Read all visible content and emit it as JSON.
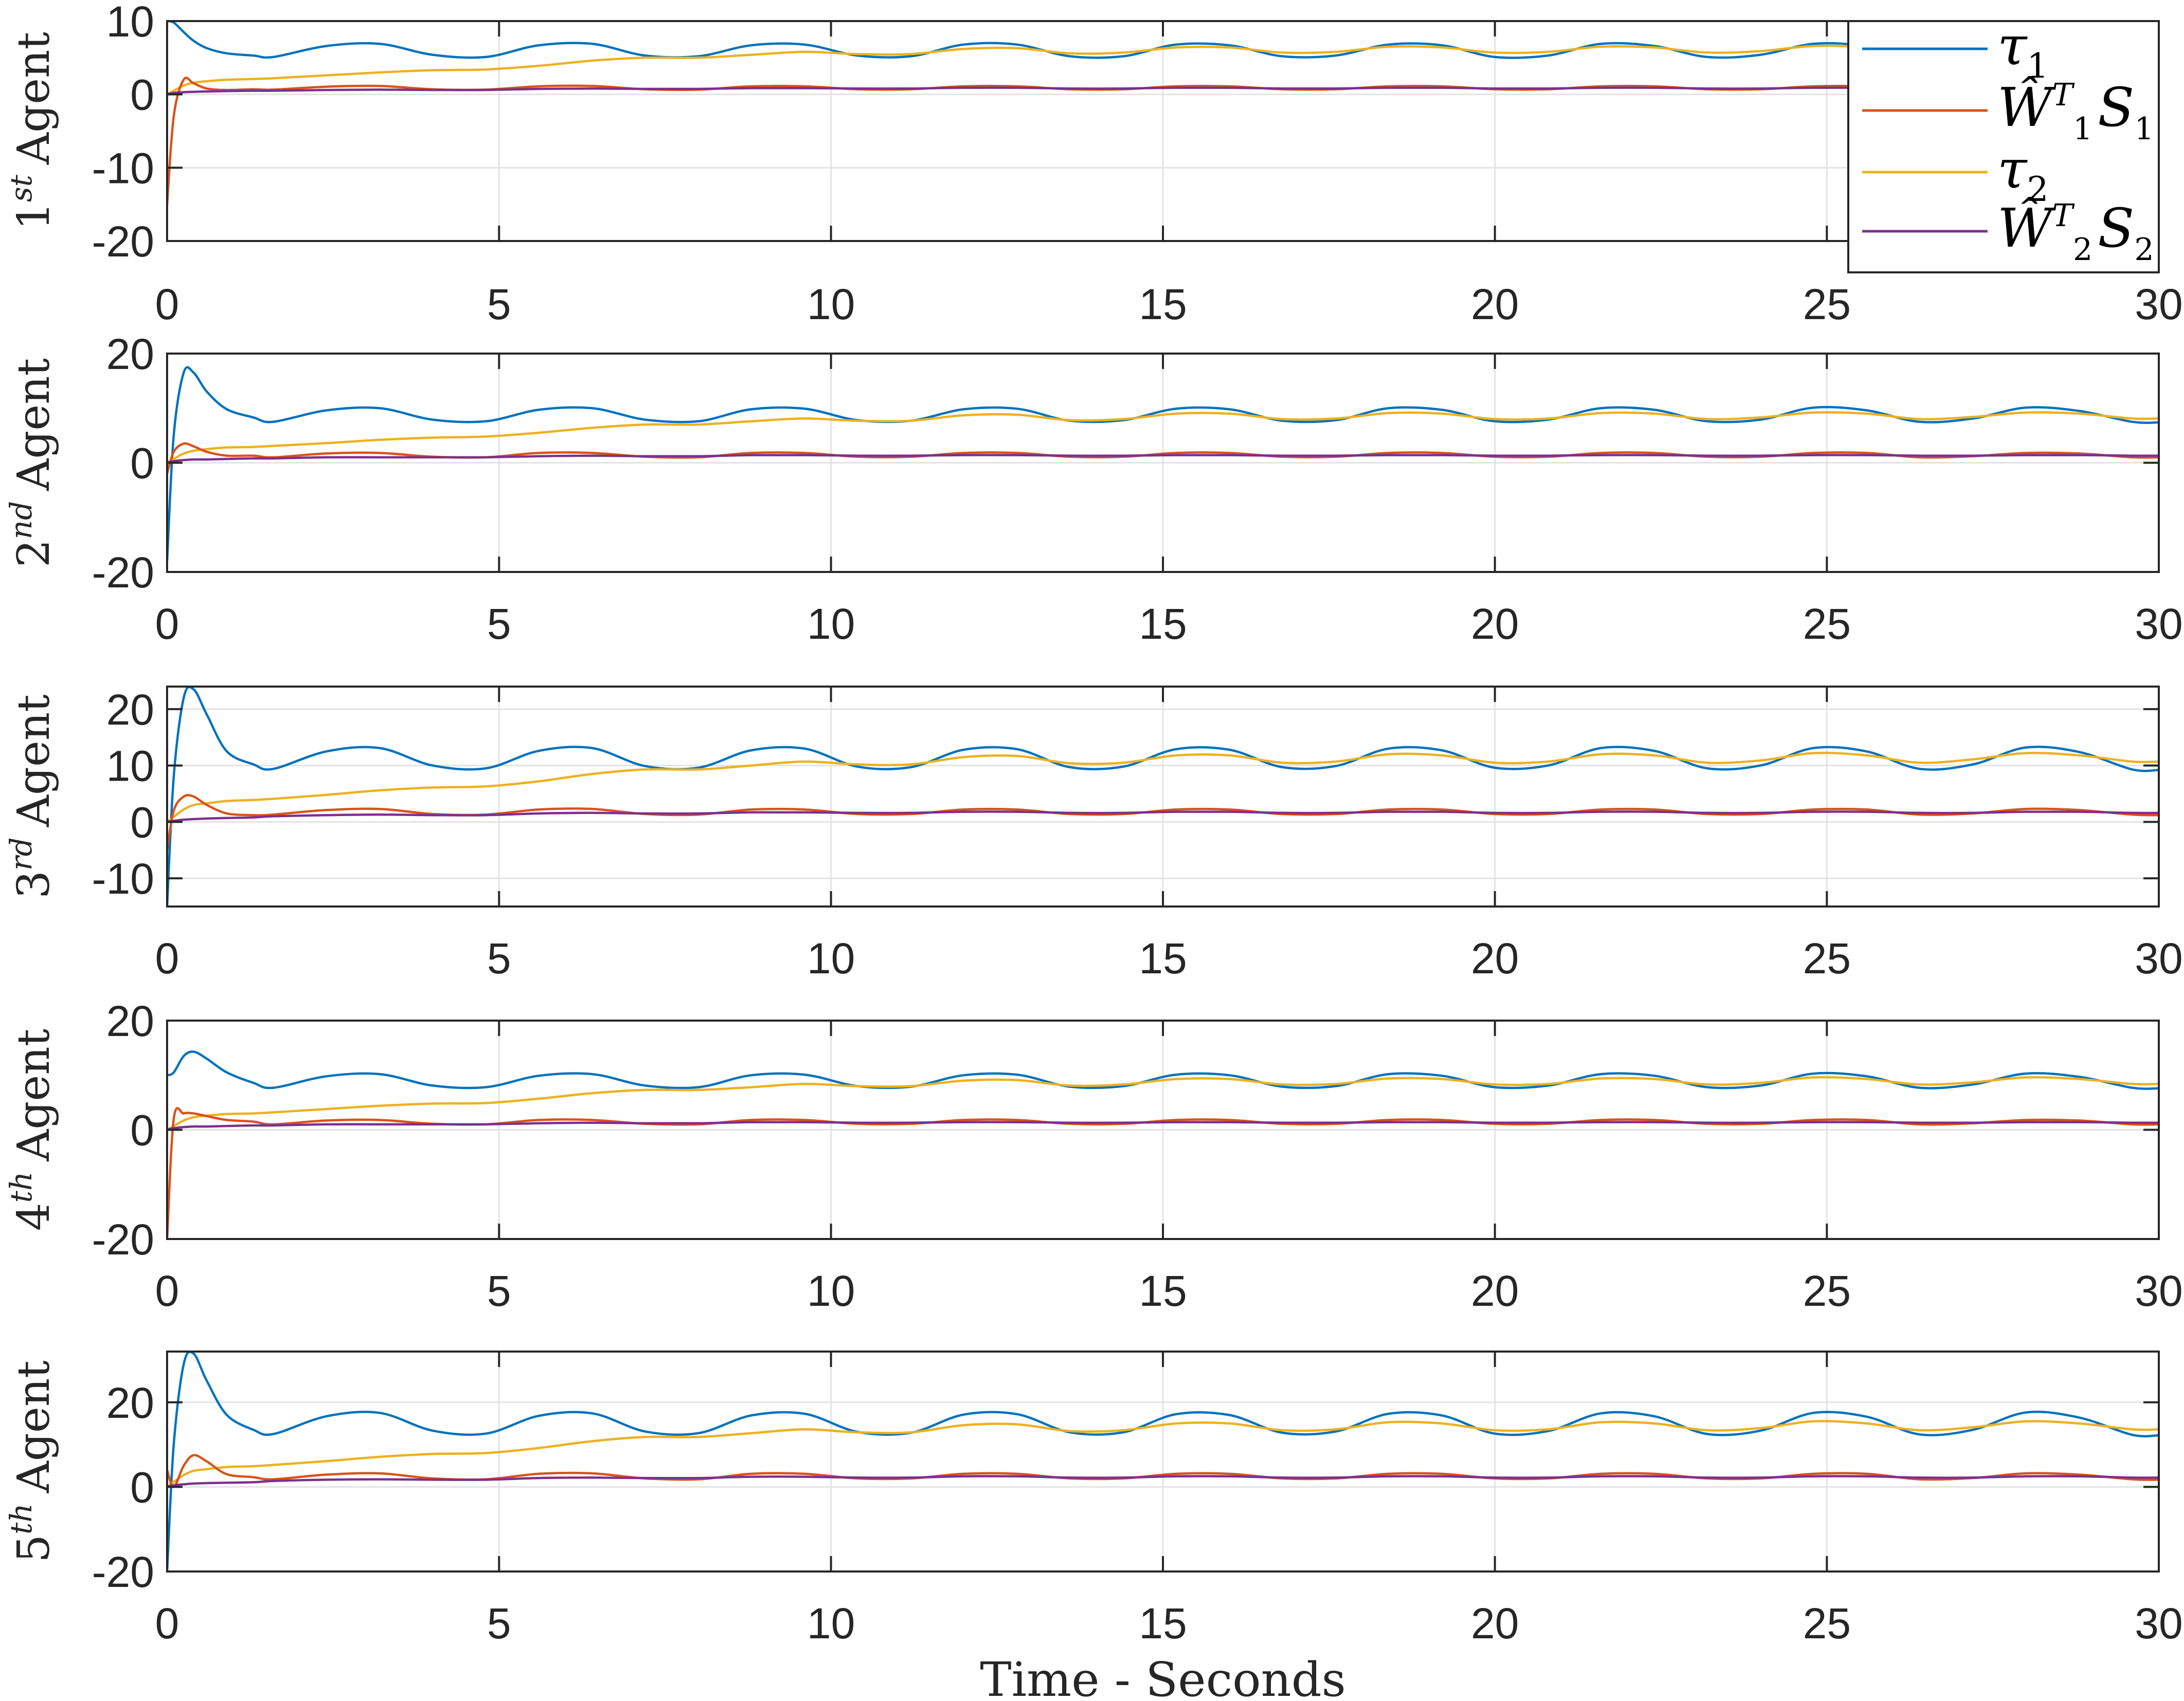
{
  "chart_data": {
    "type": "line",
    "xlabel": "Time - Seconds",
    "xlim": [
      0,
      30
    ],
    "xticks": [
      0,
      5,
      10,
      15,
      20,
      25,
      30
    ],
    "grid": true,
    "legend": {
      "placement": "top-right of first subplot",
      "entries": [
        {
          "series": "tau1",
          "base": "τ",
          "sub": "1"
        },
        {
          "series": "W1S1",
          "base": "Ŵ",
          "sup": "T",
          "sub": "1",
          "tail": "S",
          "tail_sub": "1"
        },
        {
          "series": "tau2",
          "base": "τ",
          "sub": "2"
        },
        {
          "series": "W2S2",
          "base": "Ŵ",
          "sup": "T",
          "sub": "2",
          "tail": "S",
          "tail_sub": "2"
        }
      ]
    },
    "colors": {
      "tau1": "#0072BD",
      "W1S1": "#D95319",
      "tau2": "#EDB120",
      "W2S2": "#7E2F8E"
    },
    "x": [
      0,
      0.1,
      0.25,
      0.4,
      0.6,
      0.9,
      1.3,
      1.6,
      2.4,
      3.2,
      4.0,
      4.8,
      5.6,
      6.4,
      7.2,
      8.0,
      8.8,
      9.6,
      10.4,
      11.2,
      12.0,
      12.8,
      13.6,
      14.4,
      15.2,
      16.0,
      16.8,
      17.6,
      18.4,
      19.2,
      20.0,
      20.8,
      21.6,
      22.4,
      23.2,
      24.0,
      24.8,
      25.6,
      26.4,
      27.2,
      28.0,
      28.8,
      29.6,
      30
    ],
    "subplots": [
      {
        "ordinal": "1",
        "suffix": "st",
        "ylabel": "Agent",
        "ylim": [
          -20,
          10
        ],
        "yticks": [
          -20,
          -10,
          0,
          10
        ],
        "series": {
          "tau1": [
            10,
            9.8,
            8.5,
            7.3,
            6.3,
            5.6,
            5.3,
            5.1,
            6.6,
            6.9,
            5.4,
            5.1,
            6.7,
            6.9,
            5.3,
            5.2,
            6.7,
            6.8,
            5.3,
            5.2,
            6.8,
            6.8,
            5.2,
            5.2,
            6.8,
            6.7,
            5.2,
            5.3,
            6.8,
            6.7,
            5.1,
            5.3,
            6.9,
            6.6,
            5.1,
            5.4,
            6.9,
            6.6,
            5.1,
            5.5,
            7.0,
            6.5,
            5.0,
            4.95
          ],
          "W1S1": [
            -15,
            -3,
            2,
            1.5,
            0.8,
            0.6,
            0.7,
            0.65,
            1.05,
            1.15,
            0.7,
            0.65,
            1.1,
            1.15,
            0.7,
            0.65,
            1.1,
            1.1,
            0.7,
            0.7,
            1.1,
            1.1,
            0.7,
            0.7,
            1.1,
            1.1,
            0.7,
            0.7,
            1.1,
            1.1,
            0.7,
            0.7,
            1.1,
            1.1,
            0.7,
            0.7,
            1.1,
            1.1,
            0.65,
            0.75,
            1.15,
            1.05,
            0.65,
            0.6
          ],
          "tau2": [
            0,
            0.5,
            1.2,
            1.6,
            1.8,
            2.0,
            2.1,
            2.2,
            2.6,
            3.0,
            3.3,
            3.4,
            3.9,
            4.6,
            5.0,
            5.0,
            5.4,
            5.8,
            5.5,
            5.5,
            6.2,
            6.3,
            5.6,
            5.7,
            6.4,
            6.4,
            5.7,
            5.8,
            6.5,
            6.4,
            5.7,
            5.8,
            6.5,
            6.4,
            5.7,
            5.9,
            6.6,
            6.4,
            5.7,
            6.0,
            6.6,
            6.4,
            5.8,
            5.8
          ],
          "W2S2": [
            0,
            0.2,
            0.3,
            0.35,
            0.4,
            0.45,
            0.5,
            0.5,
            0.6,
            0.65,
            0.6,
            0.6,
            0.75,
            0.8,
            0.75,
            0.75,
            0.85,
            0.85,
            0.8,
            0.8,
            0.9,
            0.9,
            0.8,
            0.8,
            0.9,
            0.9,
            0.8,
            0.8,
            0.9,
            0.9,
            0.8,
            0.8,
            0.9,
            0.9,
            0.8,
            0.8,
            0.9,
            0.9,
            0.8,
            0.8,
            0.9,
            0.9,
            0.8,
            0.8
          ]
        }
      },
      {
        "ordinal": "2",
        "suffix": "nd",
        "ylabel": "Agent",
        "ylim": [
          -20,
          20
        ],
        "yticks": [
          -20,
          0,
          20
        ],
        "series": {
          "tau1": [
            -18,
            5,
            16.5,
            16.5,
            13,
            9.8,
            8.3,
            7.5,
            9.6,
            10.0,
            7.9,
            7.6,
            9.7,
            10.0,
            7.9,
            7.6,
            9.8,
            9.9,
            7.8,
            7.7,
            9.8,
            9.9,
            7.7,
            7.8,
            9.9,
            9.8,
            7.7,
            7.8,
            10.0,
            9.7,
            7.6,
            7.9,
            10.0,
            9.7,
            7.6,
            7.9,
            10.1,
            9.6,
            7.5,
            8.1,
            10.1,
            9.5,
            7.5,
            7.4
          ],
          "W1S1": [
            -2,
            2,
            3.5,
            3,
            2,
            1.3,
            1.3,
            1.0,
            1.7,
            1.8,
            1.1,
            1.0,
            1.8,
            1.8,
            1.1,
            1.0,
            1.8,
            1.8,
            1.1,
            1.1,
            1.8,
            1.8,
            1.1,
            1.1,
            1.8,
            1.8,
            1.1,
            1.1,
            1.8,
            1.8,
            1.1,
            1.1,
            1.8,
            1.8,
            1.1,
            1.1,
            1.8,
            1.8,
            1.0,
            1.2,
            1.8,
            1.7,
            1.0,
            1.0
          ],
          "tau2": [
            0,
            0.7,
            1.7,
            2.2,
            2.5,
            2.8,
            2.9,
            3.1,
            3.6,
            4.2,
            4.6,
            4.8,
            5.5,
            6.4,
            7.0,
            7.0,
            7.6,
            8.1,
            7.7,
            7.7,
            8.7,
            8.8,
            7.8,
            8.0,
            9.0,
            9.0,
            8.0,
            8.1,
            9.1,
            9.0,
            8.0,
            8.1,
            9.1,
            9.0,
            8.0,
            8.3,
            9.2,
            9.0,
            8.0,
            8.4,
            9.2,
            9.0,
            8.1,
            8.1
          ],
          "W2S2": [
            0,
            0.3,
            0.5,
            0.6,
            0.6,
            0.7,
            0.8,
            0.8,
            1.0,
            1.0,
            1.0,
            1.0,
            1.2,
            1.3,
            1.2,
            1.2,
            1.4,
            1.4,
            1.3,
            1.3,
            1.4,
            1.4,
            1.3,
            1.3,
            1.4,
            1.4,
            1.3,
            1.3,
            1.4,
            1.4,
            1.3,
            1.3,
            1.4,
            1.4,
            1.3,
            1.3,
            1.4,
            1.4,
            1.3,
            1.3,
            1.4,
            1.4,
            1.3,
            1.3
          ]
        }
      },
      {
        "ordinal": "3",
        "suffix": "rd",
        "ylabel": "Agent",
        "ylim": [
          -15,
          24
        ],
        "yticks": [
          -10,
          0,
          10,
          20
        ],
        "series": {
          "tau1": [
            -15,
            8,
            22,
            23.5,
            19,
            12.5,
            10.2,
            9.4,
            12.5,
            13.1,
            10.0,
            9.5,
            12.6,
            13.1,
            9.9,
            9.6,
            12.7,
            13.0,
            9.8,
            9.7,
            12.8,
            12.9,
            9.7,
            9.8,
            12.9,
            12.8,
            9.7,
            9.9,
            13.0,
            12.7,
            9.6,
            10.0,
            13.1,
            12.6,
            9.5,
            10.0,
            13.1,
            12.5,
            9.4,
            10.2,
            13.2,
            12.4,
            9.3,
            9.2
          ],
          "W1S1": [
            -5,
            2,
            4.5,
            4.5,
            3,
            1.5,
            1.2,
            1.3,
            2.1,
            2.3,
            1.4,
            1.3,
            2.2,
            2.3,
            1.4,
            1.3,
            2.2,
            2.2,
            1.4,
            1.4,
            2.2,
            2.2,
            1.4,
            1.4,
            2.2,
            2.2,
            1.4,
            1.4,
            2.2,
            2.2,
            1.4,
            1.4,
            2.2,
            2.2,
            1.4,
            1.4,
            2.2,
            2.2,
            1.3,
            1.5,
            2.3,
            2.1,
            1.3,
            1.2
          ],
          "tau2": [
            0,
            0.9,
            2.2,
            3.0,
            3.3,
            3.7,
            3.9,
            4.1,
            4.8,
            5.6,
            6.1,
            6.3,
            7.2,
            8.5,
            9.3,
            9.3,
            10.0,
            10.7,
            10.2,
            10.2,
            11.5,
            11.7,
            10.4,
            10.5,
            11.8,
            11.8,
            10.5,
            10.7,
            12.0,
            11.8,
            10.5,
            10.7,
            12.0,
            11.8,
            10.5,
            10.9,
            12.2,
            11.8,
            10.5,
            11.1,
            12.2,
            11.8,
            10.7,
            10.7
          ],
          "W2S2": [
            0,
            0.2,
            0.4,
            0.5,
            0.6,
            0.7,
            0.8,
            1.0,
            1.2,
            1.3,
            1.2,
            1.2,
            1.5,
            1.6,
            1.5,
            1.5,
            1.7,
            1.7,
            1.6,
            1.6,
            1.8,
            1.8,
            1.6,
            1.6,
            1.8,
            1.8,
            1.6,
            1.6,
            1.8,
            1.8,
            1.6,
            1.6,
            1.8,
            1.8,
            1.6,
            1.6,
            1.8,
            1.8,
            1.6,
            1.6,
            1.8,
            1.8,
            1.6,
            1.6
          ]
        }
      },
      {
        "ordinal": "4",
        "suffix": "th",
        "ylabel": "Agent",
        "ylim": [
          -20,
          20
        ],
        "yticks": [
          -20,
          0,
          20
        ],
        "series": {
          "tau1": [
            10,
            10.5,
            13.5,
            14.3,
            13,
            10.5,
            8.6,
            7.7,
            9.8,
            10.2,
            8.1,
            7.8,
            9.9,
            10.2,
            8.1,
            7.8,
            10.0,
            10.1,
            8.0,
            7.9,
            10.0,
            10.1,
            7.9,
            8.0,
            10.1,
            10.0,
            7.9,
            8.0,
            10.2,
            9.9,
            7.8,
            8.1,
            10.2,
            9.9,
            7.8,
            8.1,
            10.3,
            9.8,
            7.7,
            8.3,
            10.3,
            9.7,
            7.7,
            7.6
          ],
          "W1S1": [
            -20,
            2,
            3,
            3,
            2.5,
            1.8,
            1.5,
            1.0,
            1.7,
            1.8,
            1.1,
            1.0,
            1.8,
            1.8,
            1.1,
            1.0,
            1.8,
            1.8,
            1.1,
            1.1,
            1.8,
            1.8,
            1.1,
            1.1,
            1.8,
            1.8,
            1.1,
            1.1,
            1.8,
            1.8,
            1.1,
            1.1,
            1.8,
            1.8,
            1.1,
            1.1,
            1.8,
            1.8,
            1.0,
            1.2,
            1.8,
            1.7,
            1.0,
            1.0
          ],
          "tau2": [
            0,
            0.7,
            1.7,
            2.3,
            2.6,
            2.9,
            3.0,
            3.2,
            3.8,
            4.4,
            4.8,
            4.9,
            5.7,
            6.7,
            7.3,
            7.3,
            7.8,
            8.4,
            8.0,
            8.0,
            9.0,
            9.1,
            8.1,
            8.3,
            9.3,
            9.3,
            8.3,
            8.4,
            9.4,
            9.3,
            8.3,
            8.4,
            9.4,
            9.3,
            8.3,
            8.6,
            9.6,
            9.3,
            8.3,
            8.7,
            9.6,
            9.3,
            8.4,
            8.4
          ],
          "W2S2": [
            0,
            0.3,
            0.5,
            0.6,
            0.6,
            0.7,
            0.8,
            0.8,
            1.0,
            1.0,
            1.0,
            1.0,
            1.2,
            1.3,
            1.2,
            1.2,
            1.4,
            1.4,
            1.3,
            1.3,
            1.4,
            1.4,
            1.3,
            1.3,
            1.4,
            1.4,
            1.3,
            1.3,
            1.4,
            1.4,
            1.3,
            1.3,
            1.4,
            1.4,
            1.3,
            1.3,
            1.4,
            1.4,
            1.3,
            1.3,
            1.4,
            1.4,
            1.3,
            1.3
          ]
        }
      },
      {
        "ordinal": "5",
        "suffix": "th",
        "ylabel": "Agent",
        "ylim": [
          -20,
          32
        ],
        "yticks": [
          -20,
          0,
          20
        ],
        "series": {
          "tau1": [
            -20,
            10,
            29,
            31.5,
            25,
            17,
            13.5,
            12.5,
            16.7,
            17.5,
            13.3,
            12.6,
            16.8,
            17.4,
            13.1,
            12.7,
            16.9,
            17.3,
            13.0,
            12.8,
            17.1,
            17.2,
            12.9,
            12.9,
            17.2,
            17.0,
            12.8,
            13.1,
            17.3,
            16.9,
            12.6,
            13.2,
            17.4,
            16.7,
            12.5,
            13.3,
            17.5,
            16.6,
            12.4,
            13.5,
            17.6,
            16.4,
            12.3,
            12.2
          ],
          "W1S1": [
            4,
            0,
            5,
            7.5,
            6,
            3,
            2.3,
            1.8,
            2.9,
            3.2,
            2.0,
            1.8,
            3.1,
            3.2,
            2.0,
            1.8,
            3.1,
            3.1,
            2.0,
            2.0,
            3.1,
            3.1,
            2.0,
            2.0,
            3.1,
            3.1,
            2.0,
            2.0,
            3.1,
            3.1,
            2.0,
            2.0,
            3.1,
            3.1,
            2.0,
            2.0,
            3.1,
            3.1,
            1.8,
            2.1,
            3.2,
            2.9,
            1.8,
            1.7
          ],
          "tau2": [
            0,
            1.2,
            2.8,
            3.8,
            4.2,
            4.7,
            4.9,
            5.2,
            6.1,
            7.1,
            7.8,
            8.0,
            9.2,
            10.8,
            11.8,
            11.8,
            12.7,
            13.6,
            12.9,
            12.9,
            14.6,
            14.8,
            13.2,
            13.4,
            15.0,
            15.0,
            13.4,
            13.6,
            15.3,
            15.0,
            13.4,
            13.6,
            15.3,
            15.0,
            13.4,
            13.9,
            15.5,
            15.0,
            13.4,
            14.1,
            15.5,
            15.0,
            13.6,
            13.6
          ],
          "W2S2": [
            0,
            0.4,
            0.6,
            0.8,
            0.9,
            1.0,
            1.1,
            1.4,
            1.7,
            1.8,
            1.7,
            1.7,
            2.1,
            2.2,
            2.1,
            2.1,
            2.4,
            2.4,
            2.2,
            2.2,
            2.5,
            2.5,
            2.2,
            2.2,
            2.5,
            2.5,
            2.2,
            2.2,
            2.5,
            2.5,
            2.2,
            2.2,
            2.5,
            2.5,
            2.2,
            2.2,
            2.5,
            2.5,
            2.2,
            2.2,
            2.5,
            2.5,
            2.2,
            2.2
          ]
        }
      }
    ]
  }
}
